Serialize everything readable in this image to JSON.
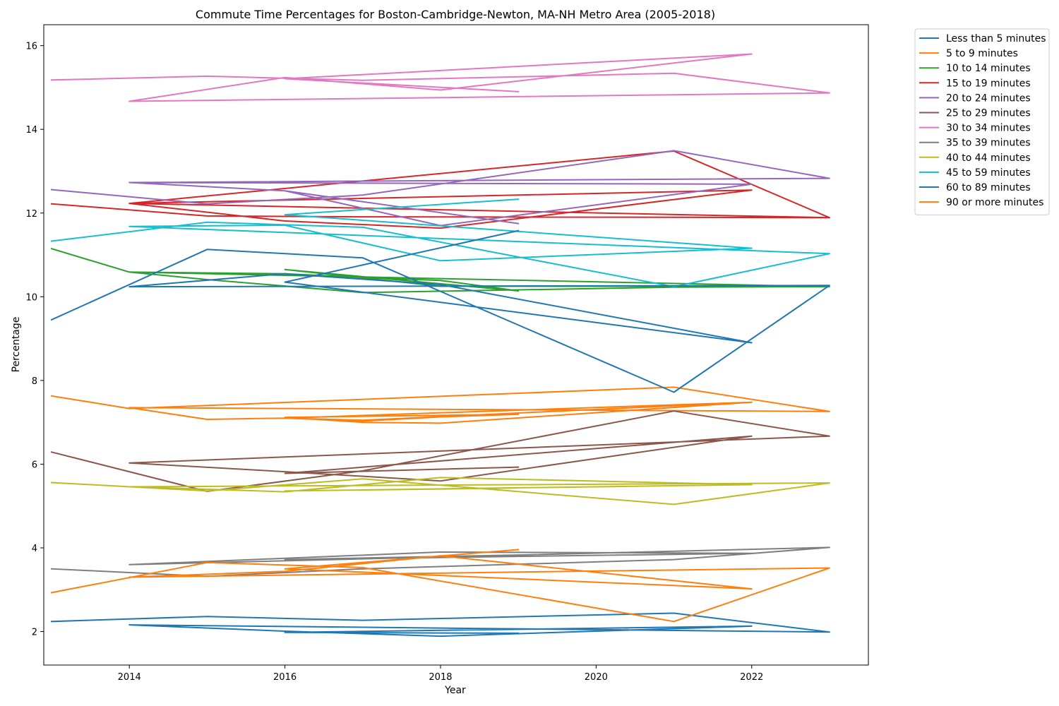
{
  "chart_data": {
    "type": "line",
    "title": "Commute Time Percentages for Boston-Cambridge-Newton, MA-NH Metro Area (2005-2018)",
    "xlabel": "Year",
    "ylabel": "Percentage",
    "xlim": [
      2012.9,
      2023.5
    ],
    "ylim": [
      1.2,
      16.5
    ],
    "xticks": [
      2014,
      2016,
      2018,
      2020,
      2022
    ],
    "yticks": [
      2,
      4,
      6,
      8,
      10,
      12,
      14,
      16
    ],
    "grid": false,
    "legend_position": "outside-top-right",
    "series": [
      {
        "name": "Less than 5 minutes",
        "color": "#1f77b4",
        "x": [
          2013,
          2015,
          2017,
          2021,
          2023,
          2014,
          2016,
          2018,
          2022,
          2016,
          2019
        ],
        "y": [
          2.24,
          2.36,
          2.27,
          2.44,
          1.99,
          2.16,
          2.01,
          1.89,
          2.13,
          1.98,
          1.96
        ]
      },
      {
        "name": "5 to 9 minutes",
        "color": "#ff7f0e",
        "x": [
          2013,
          2014,
          2021,
          2023,
          2014,
          2015,
          2016,
          2017,
          2018,
          2019,
          2016,
          2017,
          2018,
          2022,
          2016,
          2017,
          2022
        ],
        "y": [
          7.63,
          7.33,
          7.84,
          7.26,
          7.35,
          7.07,
          7.1,
          7.03,
          7.13,
          7.19,
          7.12,
          7.0,
          6.98,
          7.48,
          7.1,
          7.05,
          7.48
        ]
      },
      {
        "name": "10 to 14 minutes",
        "color": "#2ca02c",
        "x": [
          2013,
          2014,
          2015,
          2017,
          2021,
          2023,
          2014,
          2016,
          2017,
          2018,
          2019,
          2016,
          2018,
          2022
        ],
        "y": [
          11.15,
          10.59,
          10.41,
          10.1,
          10.23,
          10.24,
          10.59,
          10.55,
          10.46,
          10.39,
          10.14,
          10.65,
          10.25,
          10.25
        ]
      },
      {
        "name": "15 to 19 minutes",
        "color": "#d62728",
        "x": [
          2013,
          2015,
          2017,
          2021,
          2023,
          2014,
          2016,
          2018,
          2022,
          2014,
          2021,
          2023
        ],
        "y": [
          12.22,
          11.93,
          11.91,
          11.9,
          11.89,
          12.23,
          11.81,
          11.64,
          12.55,
          12.23,
          13.48,
          11.89
        ]
      },
      {
        "name": "20 to 24 minutes",
        "color": "#9467bd",
        "x": [
          2013,
          2015,
          2017,
          2021,
          2023,
          2014,
          2016,
          2018,
          2022,
          2014,
          2016,
          2019
        ],
        "y": [
          12.56,
          12.22,
          12.43,
          13.49,
          12.83,
          12.73,
          12.53,
          11.7,
          12.69,
          12.73,
          12.53,
          11.75
        ]
      },
      {
        "name": "25 to 29 minutes",
        "color": "#8c564b",
        "x": [
          2013,
          2015,
          2017,
          2021,
          2023,
          2014,
          2016,
          2018,
          2022,
          2016,
          2019
        ],
        "y": [
          6.29,
          5.35,
          5.84,
          7.27,
          6.67,
          6.03,
          5.82,
          5.6,
          6.67,
          5.78,
          5.93
        ]
      },
      {
        "name": "30 to 34 minutes",
        "color": "#e377c2",
        "x": [
          2013,
          2015,
          2017,
          2021,
          2023,
          2014,
          2016,
          2018,
          2022,
          2016,
          2019
        ],
        "y": [
          15.18,
          15.27,
          15.17,
          15.34,
          14.87,
          14.67,
          15.24,
          14.94,
          15.8,
          15.21,
          14.9
        ]
      },
      {
        "name": "35 to 39 minutes",
        "color": "#7f7f7f",
        "x": [
          2013,
          2015,
          2017,
          2021,
          2023,
          2014,
          2016,
          2018,
          2022,
          2016,
          2019
        ],
        "y": [
          3.5,
          3.32,
          3.5,
          3.72,
          4.01,
          3.6,
          3.75,
          3.9,
          3.87,
          3.72,
          3.83
        ]
      },
      {
        "name": "40 to 44 minutes",
        "color": "#bcbd22",
        "x": [
          2013,
          2015,
          2017,
          2021,
          2023,
          2014,
          2016,
          2018,
          2022,
          2016,
          2019
        ],
        "y": [
          5.56,
          5.36,
          5.65,
          5.04,
          5.55,
          5.46,
          5.34,
          5.68,
          5.51,
          5.36,
          5.43
        ]
      },
      {
        "name": "45 to 59 minutes",
        "color": "#17becf",
        "x": [
          2013,
          2015,
          2017,
          2021,
          2023,
          2014,
          2016,
          2018,
          2022,
          2016,
          2019
        ],
        "y": [
          11.33,
          11.78,
          11.66,
          10.24,
          11.03,
          11.68,
          11.71,
          10.86,
          11.16,
          11.96,
          12.33
        ]
      },
      {
        "name": "60 to 89 minutes",
        "color": "#1f77b4",
        "x": [
          2013,
          2015,
          2017,
          2021,
          2023,
          2014,
          2016,
          2018,
          2022,
          2016,
          2019
        ],
        "y": [
          9.45,
          11.13,
          10.93,
          7.72,
          10.27,
          10.24,
          10.55,
          10.29,
          8.9,
          10.35,
          11.58
        ]
      },
      {
        "name": "90 or more minutes",
        "color": "#ff7f0e",
        "x": [
          2013,
          2015,
          2017,
          2021,
          2023,
          2014,
          2016,
          2018,
          2022,
          2016,
          2019
        ],
        "y": [
          2.93,
          3.65,
          3.53,
          2.24,
          3.52,
          3.3,
          3.44,
          3.81,
          3.02,
          3.5,
          3.96
        ]
      }
    ]
  }
}
